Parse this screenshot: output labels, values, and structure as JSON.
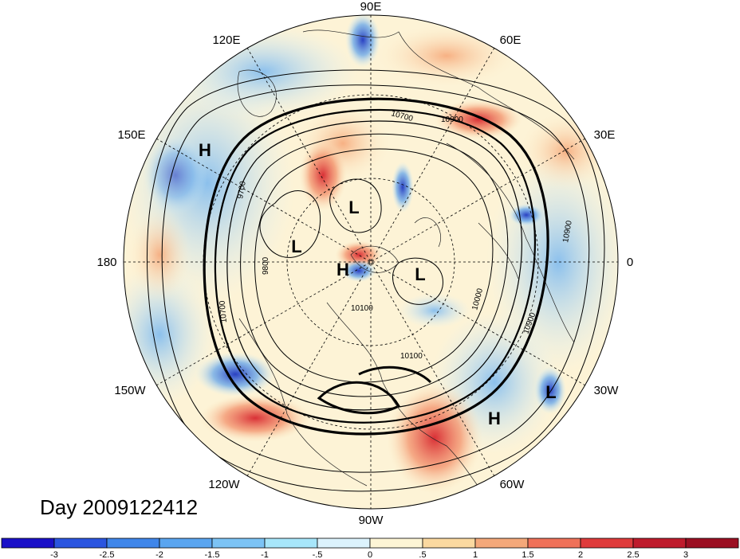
{
  "map": {
    "projection": "north polar stereographic",
    "lon_labels": {
      "e90": "90E",
      "e60": "60E",
      "e30": "30E",
      "e0": "0",
      "w30": "30W",
      "w60": "60W",
      "w90": "90W",
      "w120": "120W",
      "w150": "150W",
      "e180": "180",
      "e150": "150E",
      "e120": "120E"
    },
    "pressure_centers": [
      {
        "type": "H",
        "label": "H"
      },
      {
        "type": "L",
        "label": "L"
      },
      {
        "type": "L",
        "label": "L"
      },
      {
        "type": "H",
        "label": "H"
      },
      {
        "type": "L",
        "label": "L"
      },
      {
        "type": "L",
        "label": "L"
      },
      {
        "type": "H",
        "label": "H"
      }
    ],
    "contour_labels": [
      "10900",
      "10700",
      "10100",
      "9800",
      "9700",
      "10000",
      "10100",
      "10900",
      "10900",
      "10700"
    ],
    "day_label": "Day 2009122412"
  },
  "colorbar": {
    "ticks": [
      "-3",
      "-2.5",
      "-2",
      "-1.5",
      "-1",
      "-.5",
      "0",
      ".5",
      "1",
      "1.5",
      "2",
      "2.5",
      "3"
    ],
    "colors": [
      "#1a10c8",
      "#2a55e0",
      "#3f86ea",
      "#5aa5f0",
      "#7cc3f5",
      "#a7e6fa",
      "#dcf3fd",
      "#fdf5d5",
      "#fbd9a0",
      "#f4a87a",
      "#ef7159",
      "#df3b3b",
      "#bf1b2c",
      "#9b0f22"
    ]
  }
}
